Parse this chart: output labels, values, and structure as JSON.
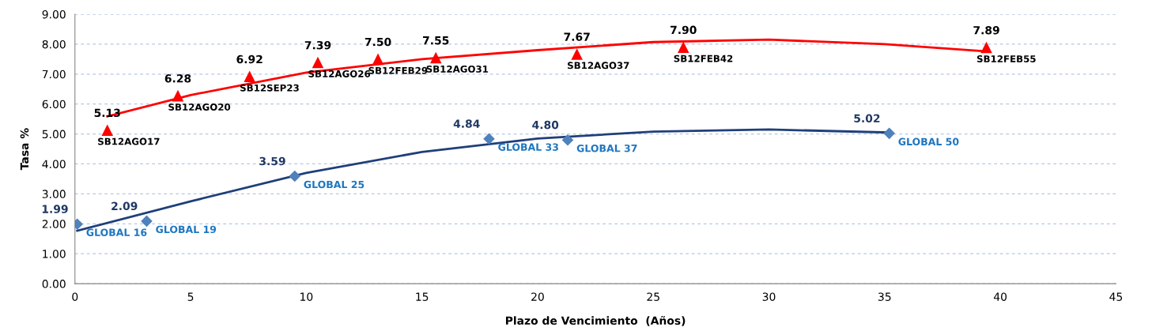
{
  "chart_data": {
    "type": "scatter",
    "xlabel": "Plazo de Vencimiento  (Años)",
    "ylabel": "Tasa %",
    "series": [
      {
        "color": "#ff0000",
        "marker": "triangle",
        "x": [
          1.4,
          4.45,
          7.55,
          10.5,
          13.1,
          15.6,
          21.7,
          26.3,
          39.4
        ],
        "values": [
          5.13,
          6.28,
          6.92,
          7.39,
          7.5,
          7.55,
          7.67,
          7.9,
          7.89
        ],
        "value_labels": [
          "5.13",
          "6.28",
          "6.92",
          "7.39",
          "7.50",
          "7.55",
          "7.67",
          "7.90",
          "7.89"
        ]
      },
      {
        "color": "#4f81bd",
        "marker": "diamond",
        "x": [
          0.1,
          3.1,
          9.5,
          17.9,
          21.3,
          35.2
        ],
        "values": [
          1.99,
          2.09,
          3.59,
          4.84,
          4.8,
          5.02
        ],
        "value_labels": [
          "1.99",
          "2.09",
          "3.59",
          "4.84",
          "4.80",
          "5.02"
        ]
      },
      {
        "type": "line",
        "color": "#ff0000",
        "marker": "none",
        "x": [
          1.4,
          5,
          10,
          15,
          20,
          25,
          30,
          35,
          39.4
        ],
        "values": [
          5.59,
          6.3,
          7.05,
          7.5,
          7.8,
          8.07,
          8.15,
          8.0,
          7.76
        ]
      },
      {
        "type": "line",
        "color": "#1f3f7a",
        "marker": "none",
        "x": [
          0.1,
          5,
          10,
          15,
          20,
          25,
          30,
          35.2
        ],
        "values": [
          1.77,
          2.75,
          3.7,
          4.4,
          4.85,
          5.08,
          5.15,
          5.05
        ]
      }
    ],
    "annotations": [
      {
        "text": "SB12AGO17",
        "x": 1.4,
        "y": 5.13
      },
      {
        "text": "SB12AGO20",
        "x": 4.45,
        "y": 6.28
      },
      {
        "text": "SB12SEP23",
        "x": 7.55,
        "y": 6.92
      },
      {
        "text": "SB12AGO26",
        "x": 10.5,
        "y": 7.39
      },
      {
        "text": "SB12FEB29",
        "x": 13.1,
        "y": 7.5
      },
      {
        "text": "SB12AGO31",
        "x": 15.6,
        "y": 7.55
      },
      {
        "text": "SB12AGO37",
        "x": 21.7,
        "y": 7.67
      },
      {
        "text": "SB12FEB42",
        "x": 26.3,
        "y": 7.9
      },
      {
        "text": "SB12FEB55",
        "x": 39.4,
        "y": 7.89
      },
      {
        "text": "GLOBAL 16",
        "x": 0.1,
        "y": 1.99
      },
      {
        "text": "GLOBAL 19",
        "x": 3.1,
        "y": 2.09
      },
      {
        "text": "GLOBAL 25",
        "x": 9.5,
        "y": 3.59
      },
      {
        "text": "GLOBAL 33",
        "x": 17.9,
        "y": 4.84
      },
      {
        "text": "GLOBAL 37",
        "x": 21.3,
        "y": 4.8
      },
      {
        "text": "GLOBAL 50",
        "x": 35.2,
        "y": 5.02
      }
    ],
    "xlim": [
      0,
      45
    ],
    "xticks": [
      0,
      5,
      10,
      15,
      20,
      25,
      30,
      35,
      40,
      45
    ],
    "ylim": [
      0,
      9
    ],
    "yticks": [
      {
        "value": 0,
        "label": "0.00"
      },
      {
        "value": 1,
        "label": "1.00"
      },
      {
        "value": 2,
        "label": "2.00"
      },
      {
        "value": 3,
        "label": "3.00"
      },
      {
        "value": 4,
        "label": "4.00"
      },
      {
        "value": 5,
        "label": "5.00"
      },
      {
        "value": 6,
        "label": "6.00"
      },
      {
        "value": 7,
        "label": "7.00"
      },
      {
        "value": 8,
        "label": "8.00"
      },
      {
        "value": 9,
        "label": "9.00"
      }
    ],
    "grid": "y",
    "data_labels": false
  }
}
